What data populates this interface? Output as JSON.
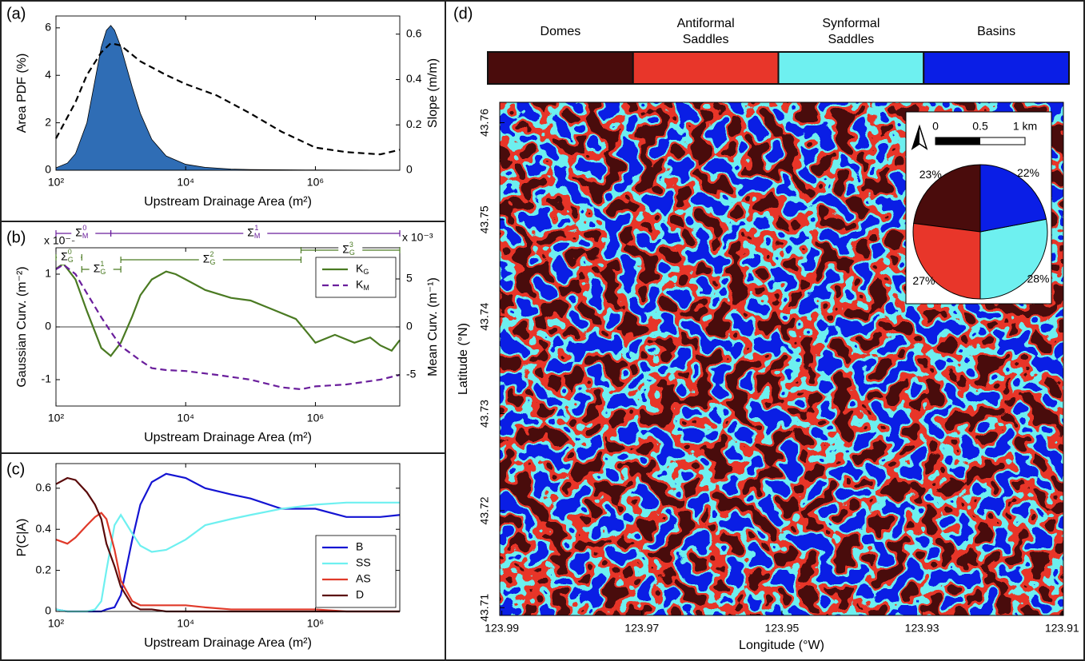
{
  "chart_data": [
    {
      "type": "line",
      "panel_label": "(a)",
      "xlabel": "Upstream Drainage Area (m²)",
      "ylabel": "Area PDF (%)",
      "y2label": "Slope (m/m)",
      "xscale": "log",
      "xlim": [
        100,
        20000000
      ],
      "xticks": [
        {
          "value": 100,
          "label": "10²"
        },
        {
          "value": 10000,
          "label": "10⁴"
        },
        {
          "value": 1000000,
          "label": "10⁶"
        }
      ],
      "ylim": [
        0,
        6.5
      ],
      "yticks": [
        0,
        2,
        4,
        6
      ],
      "y2lim": [
        0,
        0.68
      ],
      "y2ticks": [
        0,
        0.2,
        0.4,
        0.6
      ],
      "series": [
        {
          "type": "area",
          "color": "#2f6db5",
          "x": [
            100,
            150,
            200,
            300,
            400,
            500,
            600,
            700,
            800,
            1000,
            1500,
            2000,
            3000,
            5000,
            10000,
            20000,
            50000,
            100000,
            1000000,
            20000000
          ],
          "values": [
            0.1,
            0.3,
            0.7,
            2.0,
            3.8,
            5.2,
            5.9,
            6.1,
            5.9,
            5.2,
            3.5,
            2.4,
            1.3,
            0.6,
            0.25,
            0.12,
            0.05,
            0.03,
            0.01,
            0
          ]
        },
        {
          "type": "line",
          "color": "#000000",
          "dash": true,
          "axis": "y2",
          "x": [
            100,
            200,
            300,
            500,
            700,
            1000,
            2000,
            5000,
            10000,
            30000,
            100000,
            300000,
            1000000,
            3000000,
            10000000,
            20000000
          ],
          "values": [
            0.14,
            0.3,
            0.42,
            0.52,
            0.56,
            0.55,
            0.48,
            0.42,
            0.38,
            0.33,
            0.25,
            0.17,
            0.1,
            0.08,
            0.07,
            0.09
          ]
        }
      ]
    },
    {
      "type": "line",
      "panel_label": "(b)",
      "xlabel": "Upstream Drainage Area (m²)",
      "ylabel": "Gaussian Curv. (m⁻²)",
      "y2label": "Mean Curv. (m⁻¹)",
      "xscale": "log",
      "ycolor": "#4a7a22",
      "y2color": "#6a1e9c",
      "y_multiplier": "x 10⁻⁵",
      "y2_multiplier": "x 10⁻³",
      "zero_line": true,
      "legend": "upper right",
      "xlim": [
        100,
        20000000
      ],
      "xticks": [
        {
          "value": 100,
          "label": "10²"
        },
        {
          "value": 10000,
          "label": "10⁴"
        },
        {
          "value": 1000000,
          "label": "10⁶"
        }
      ],
      "ylim": [
        -1.5,
        1.5
      ],
      "yticks": [
        -1,
        0,
        1
      ],
      "y2lim": [
        -8.25,
        8.25
      ],
      "y2ticks": [
        -5,
        0,
        5
      ],
      "brackets": [
        {
          "axis": "y2",
          "symbol": "Σ",
          "sub": "M",
          "sup": "0",
          "from": 100,
          "to": 700
        },
        {
          "axis": "y2",
          "symbol": "Σ",
          "sub": "M",
          "sup": "1",
          "from": 700,
          "to": 20000000
        },
        {
          "axis": "y",
          "symbol": "Σ",
          "sub": "G",
          "sup": "0",
          "from": 100,
          "to": 250
        },
        {
          "axis": "y",
          "symbol": "Σ",
          "sub": "G",
          "sup": "1",
          "from": 250,
          "to": 1000
        },
        {
          "axis": "y",
          "symbol": "Σ",
          "sub": "G",
          "sup": "2",
          "from": 1000,
          "to": 600000
        },
        {
          "axis": "y",
          "symbol": "Σ",
          "sub": "G",
          "sup": "3",
          "from": 600000,
          "to": 20000000
        }
      ],
      "series": [
        {
          "type": "line",
          "name": "K",
          "subscript": "G",
          "color": "#4a7a22",
          "x": [
            100,
            130,
            200,
            300,
            500,
            700,
            1000,
            1500,
            2000,
            3000,
            5000,
            7000,
            10000,
            20000,
            50000,
            100000,
            200000,
            500000,
            800000,
            1000000,
            2000000,
            4000000,
            7000000,
            10000000,
            15000000,
            20000000
          ],
          "values": [
            1.1,
            1.2,
            0.9,
            0.3,
            -0.4,
            -0.55,
            -0.3,
            0.2,
            0.6,
            0.9,
            1.05,
            1.0,
            0.9,
            0.7,
            0.55,
            0.5,
            0.35,
            0.15,
            -0.15,
            -0.3,
            -0.15,
            -0.3,
            -0.2,
            -0.35,
            -0.45,
            -0.25
          ]
        },
        {
          "type": "line",
          "name": "K",
          "subscript": "M",
          "color": "#6a1e9c",
          "dash": true,
          "axis": "y2",
          "x": [
            100,
            130,
            200,
            300,
            500,
            700,
            1000,
            2000,
            3000,
            5000,
            10000,
            30000,
            100000,
            300000,
            600000,
            1000000,
            3000000,
            10000000,
            20000000
          ],
          "values": [
            6,
            6.5,
            5.5,
            3.5,
            1,
            -0.5,
            -2,
            -3.5,
            -4.3,
            -4.5,
            -4.6,
            -5,
            -5.5,
            -6.3,
            -6.5,
            -6.2,
            -6,
            -5.5,
            -5
          ]
        }
      ]
    },
    {
      "type": "line",
      "panel_label": "(c)",
      "xlabel": "Upstream Drainage Area (m²)",
      "ylabel": "P(C|A)",
      "xscale": "log",
      "legend": "lower right",
      "xlim": [
        100,
        20000000
      ],
      "xticks": [
        {
          "value": 100,
          "label": "10²"
        },
        {
          "value": 10000,
          "label": "10⁴"
        },
        {
          "value": 1000000,
          "label": "10⁶"
        }
      ],
      "ylim": [
        0,
        0.72
      ],
      "yticks": [
        0,
        0.2,
        0.4,
        0.6
      ],
      "x": [
        100,
        150,
        200,
        300,
        400,
        500,
        600,
        800,
        1000,
        1500,
        2000,
        3000,
        5000,
        10000,
        20000,
        50000,
        100000,
        300000,
        1000000,
        3000000,
        10000000,
        20000000
      ],
      "series": [
        {
          "type": "line",
          "name": "B",
          "color": "#1414d2",
          "values": [
            0.01,
            0,
            0,
            0,
            0,
            0,
            0.01,
            0.02,
            0.08,
            0.35,
            0.52,
            0.63,
            0.67,
            0.65,
            0.6,
            0.57,
            0.55,
            0.5,
            0.5,
            0.46,
            0.46,
            0.47
          ]
        },
        {
          "type": "line",
          "name": "SS",
          "color": "#6ef0f0",
          "values": [
            0.01,
            0,
            0,
            0,
            0.01,
            0.05,
            0.2,
            0.42,
            0.47,
            0.38,
            0.32,
            0.29,
            0.3,
            0.35,
            0.42,
            0.45,
            0.47,
            0.5,
            0.52,
            0.53,
            0.53,
            0.53
          ]
        },
        {
          "type": "line",
          "name": "AS",
          "color": "#e03a2a",
          "values": [
            0.35,
            0.33,
            0.36,
            0.42,
            0.46,
            0.48,
            0.45,
            0.3,
            0.15,
            0.05,
            0.03,
            0.03,
            0.03,
            0.03,
            0.02,
            0.01,
            0.01,
            0.01,
            0.01,
            0,
            0,
            0
          ]
        },
        {
          "type": "line",
          "name": "D",
          "color": "#5a0a0a",
          "values": [
            0.62,
            0.65,
            0.64,
            0.58,
            0.52,
            0.45,
            0.33,
            0.22,
            0.12,
            0.03,
            0.01,
            0.01,
            0,
            0,
            0,
            0,
            0,
            0,
            0,
            0,
            0,
            0
          ]
        }
      ]
    },
    {
      "type": "map",
      "panel_label": "(d)",
      "xlabel": "Longitude (°W)",
      "ylabel": "Latitude (°N)",
      "xlim": [
        123.9903,
        123.9098
      ],
      "xticks": [
        123.99,
        123.97,
        123.95,
        123.93,
        123.91
      ],
      "ylim": [
        43.7092,
        43.7621
      ],
      "yticks": [
        43.71,
        43.72,
        43.73,
        43.74,
        43.75,
        43.76
      ],
      "categories": [
        "Domes",
        "Antiformal Saddles",
        "Synformal Saddles",
        "Basins"
      ],
      "colors": [
        "#4a0c0c",
        "#e8362a",
        "#6ef0f0",
        "#0a1ee6"
      ],
      "values": [
        23,
        27,
        28,
        22
      ],
      "value_labels": [
        "23%",
        "27%",
        "28%",
        "22%"
      ],
      "scale_bar": [
        "0",
        "0.5",
        "1 km"
      ]
    }
  ]
}
